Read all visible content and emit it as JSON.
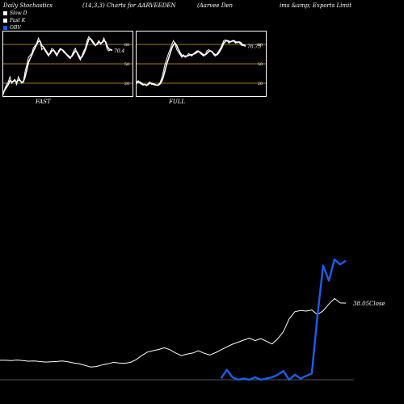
{
  "header": {
    "title": "Daily Stochastics",
    "params": "(14,3,3) Charts for AARVEEDEN",
    "company": "(Aarvee  Den",
    "company2": "ims &amp; Exports Limit"
  },
  "legend": [
    {
      "label": "Slow  D",
      "color": "#ffffff"
    },
    {
      "label": "Fast K",
      "color": "#ffffff"
    },
    {
      "label": "OBV",
      "color": "#1a5fe8"
    }
  ],
  "colors": {
    "background": "#000000",
    "level_line": "#a07828",
    "obv": "#1a5fe8",
    "price": "#ffffff"
  },
  "chart_data": [
    {
      "type": "line",
      "title": "FAST",
      "ylim": [
        0,
        100
      ],
      "level_lines": [
        80,
        50,
        20
      ],
      "tick_labels": [
        "80",
        "50",
        "20"
      ],
      "last_value_label": "70.4",
      "x": [
        1,
        2,
        3,
        4,
        5,
        6,
        7,
        8,
        9,
        10,
        11,
        12,
        13,
        14,
        15,
        16,
        17,
        18,
        19,
        20,
        21,
        22,
        23,
        24,
        25,
        26,
        27,
        28,
        29,
        30,
        31,
        32,
        33,
        34,
        35,
        36,
        37,
        38,
        39,
        40,
        41,
        42,
        43,
        44,
        45,
        46,
        47,
        48,
        49,
        50,
        51,
        52,
        53,
        54,
        55,
        56,
        57,
        58,
        59,
        60,
        61,
        62,
        63,
        64,
        65,
        66
      ],
      "series": [
        {
          "name": "Fast K",
          "values": [
            2,
            12,
            18,
            22,
            30,
            20,
            24,
            26,
            18,
            30,
            25,
            20,
            22,
            38,
            48,
            60,
            63,
            66,
            75,
            78,
            82,
            90,
            84,
            72,
            75,
            70,
            66,
            62,
            68,
            74,
            72,
            66,
            62,
            70,
            74,
            72,
            68,
            66,
            63,
            60,
            58,
            64,
            70,
            74,
            66,
            60,
            56,
            63,
            70,
            75,
            86,
            92,
            88,
            84,
            80,
            78,
            82,
            86,
            80,
            84,
            90,
            82,
            72,
            70,
            72,
            70
          ]
        },
        {
          "name": "Slow  D",
          "values": [
            5,
            10,
            14,
            18,
            24,
            22,
            23,
            24,
            22,
            25,
            24,
            22,
            22,
            30,
            40,
            52,
            58,
            63,
            70,
            75,
            80,
            85,
            85,
            78,
            76,
            72,
            68,
            64,
            66,
            70,
            71,
            68,
            64,
            68,
            72,
            72,
            70,
            67,
            64,
            62,
            60,
            62,
            66,
            70,
            68,
            63,
            59,
            61,
            66,
            72,
            80,
            88,
            89,
            86,
            82,
            79,
            80,
            84,
            82,
            83,
            86,
            84,
            77,
            73,
            72,
            71
          ]
        }
      ]
    },
    {
      "type": "line",
      "title": "FULL",
      "ylim": [
        0,
        100
      ],
      "level_lines": [
        80,
        50,
        20
      ],
      "tick_labels": [
        "80",
        "50",
        "20"
      ],
      "last_value_label": "76.75",
      "x": [
        1,
        2,
        3,
        4,
        5,
        6,
        7,
        8,
        9,
        10,
        11,
        12,
        13,
        14,
        15,
        16,
        17,
        18,
        19,
        20,
        21,
        22,
        23,
        24,
        25,
        26,
        27,
        28,
        29,
        30,
        31,
        32,
        33,
        34,
        35,
        36,
        37,
        38,
        39,
        40,
        41,
        42,
        43,
        44,
        45,
        46,
        47,
        48,
        49,
        50,
        51,
        52,
        53,
        54,
        55,
        56,
        57,
        58,
        59,
        60,
        61,
        62,
        63,
        64,
        65,
        66
      ],
      "series": [
        {
          "name": "Fast K",
          "values": [
            22,
            24,
            20,
            18,
            17,
            18,
            16,
            20,
            22,
            18,
            18,
            17,
            17,
            18,
            21,
            28,
            38,
            50,
            58,
            66,
            72,
            80,
            86,
            80,
            72,
            68,
            64,
            60,
            64,
            60,
            62,
            66,
            64,
            62,
            66,
            68,
            70,
            70,
            66,
            64,
            62,
            65,
            70,
            72,
            70,
            68,
            64,
            62,
            66,
            70,
            74,
            80,
            86,
            87,
            86,
            82,
            84,
            86,
            85,
            82,
            84,
            84,
            80,
            78,
            78,
            77
          ]
        },
        {
          "name": "Slow  D",
          "values": [
            20,
            22,
            22,
            20,
            18,
            18,
            17,
            18,
            20,
            20,
            19,
            18,
            17,
            17,
            19,
            23,
            30,
            40,
            50,
            58,
            66,
            74,
            80,
            82,
            78,
            72,
            67,
            63,
            62,
            62,
            62,
            63,
            64,
            64,
            65,
            66,
            68,
            69,
            68,
            66,
            64,
            64,
            66,
            69,
            70,
            69,
            66,
            64,
            64,
            67,
            71,
            76,
            82,
            85,
            86,
            85,
            84,
            85,
            86,
            84,
            83,
            84,
            83,
            80,
            79,
            78
          ]
        }
      ]
    },
    {
      "type": "line",
      "title": "",
      "last_value_label": "38.05Close",
      "x": [
        1,
        2,
        3,
        4,
        5,
        6,
        7,
        8,
        9,
        10,
        11,
        12,
        13,
        14,
        15,
        16,
        17,
        18,
        19,
        20,
        21,
        22,
        23,
        24,
        25,
        26,
        27,
        28,
        29,
        30,
        31,
        32,
        33,
        34,
        35,
        36,
        37,
        38,
        39,
        40,
        41,
        42,
        43,
        44,
        45,
        46,
        47,
        48,
        49,
        50,
        51,
        52,
        53,
        54,
        55,
        56,
        57,
        58,
        59,
        60,
        61,
        62
      ],
      "series": [
        {
          "name": "Close",
          "values": [
            18.5,
            18.5,
            18.4,
            18.6,
            18.4,
            18.2,
            18.3,
            18.1,
            17.9,
            18.0,
            18.1,
            18.3,
            18.0,
            17.6,
            17.3,
            16.8,
            16.2,
            16.4,
            16.9,
            17.3,
            17.8,
            17.6,
            17.5,
            17.8,
            18.7,
            20.1,
            21.3,
            21.8,
            22.2,
            22.8,
            22.1,
            21.0,
            20.1,
            20.6,
            21.0,
            21.8,
            20.9,
            20.3,
            21.1,
            22.1,
            23.1,
            24.0,
            24.7,
            25.4,
            26.1,
            25.2,
            25.9,
            25.0,
            24.1,
            25.9,
            28.3,
            32.6,
            35.1,
            35.5,
            35.3,
            35.7,
            34.1,
            35.4,
            37.7,
            39.6,
            38.1,
            38.05
          ]
        },
        {
          "name": "OBV",
          "values": [
            null,
            null,
            null,
            null,
            null,
            null,
            null,
            null,
            null,
            null,
            null,
            null,
            null,
            null,
            null,
            null,
            null,
            null,
            null,
            null,
            null,
            null,
            null,
            null,
            null,
            null,
            null,
            null,
            null,
            null,
            null,
            null,
            null,
            null,
            null,
            null,
            null,
            null,
            null,
            -0.5,
            0.2,
            -0.4,
            -0.6,
            -0.5,
            -0.6,
            -0.4,
            -0.6,
            -0.5,
            -0.4,
            -0.2,
            0.1,
            -0.6,
            -0.2,
            -0.5,
            -0.3,
            -0.1,
            4.5,
            8.5,
            7.3,
            9.0,
            8.6,
            8.9
          ]
        }
      ]
    }
  ]
}
